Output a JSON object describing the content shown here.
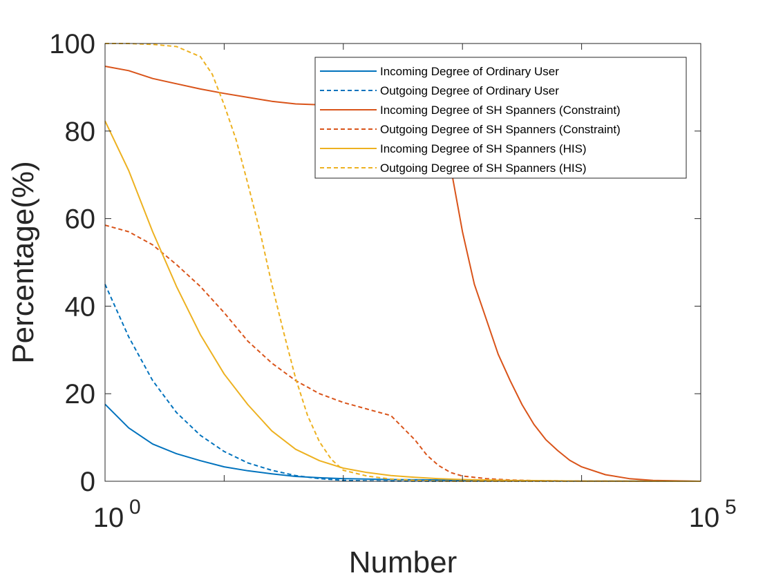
{
  "chart_data": {
    "type": "line",
    "xlabel": "Number",
    "ylabel": "Percentage(%)",
    "x_scale": "log",
    "xlim": [
      1,
      100000
    ],
    "ylim": [
      0,
      100
    ],
    "x_ticks": [
      {
        "base": "10",
        "exp": "0"
      },
      {
        "base": "10",
        "exp": "5"
      }
    ],
    "y_ticks": [
      "0",
      "20",
      "40",
      "60",
      "80",
      "100"
    ],
    "legend_position": "top-right",
    "grid": false,
    "series": [
      {
        "name": "Incoming Degree of Ordinary User",
        "color": "#0072BD",
        "dash": "solid",
        "x": [
          1,
          1.58,
          2.51,
          3.98,
          6.31,
          10,
          15.8,
          25.1,
          39.8,
          63.1,
          100,
          251,
          631,
          1000,
          3162,
          10000,
          100000
        ],
        "y": [
          17.6,
          12.2,
          8.5,
          6.3,
          4.7,
          3.3,
          2.4,
          1.7,
          1.1,
          0.8,
          0.6,
          0.4,
          0.3,
          0.2,
          0.1,
          0.05,
          0
        ]
      },
      {
        "name": "Outgoing Degree of Ordinary User",
        "color": "#0072BD",
        "dash": "dashed",
        "x": [
          1,
          1.58,
          2.51,
          3.98,
          6.31,
          10,
          15.8,
          25.1,
          39.8,
          63.1,
          100,
          158,
          251,
          631,
          1000,
          10000,
          100000
        ],
        "y": [
          45,
          33,
          23,
          15.7,
          10.5,
          6.8,
          4.2,
          2.5,
          1.3,
          0.6,
          0.2,
          0.1,
          0.05,
          0,
          0,
          0,
          0
        ]
      },
      {
        "name": "Incoming Degree of SH Spanners (Constraint)",
        "color": "#D95319",
        "dash": "solid",
        "x": [
          1,
          1.58,
          2.51,
          3.98,
          6.31,
          10,
          15.8,
          25.1,
          39.8,
          63.1,
          100,
          158,
          251,
          398,
          631,
          794,
          1000,
          1259,
          1585,
          1995,
          2512,
          3162,
          3981,
          5012,
          6310,
          7943,
          10000,
          15849,
          25119,
          39811,
          100000
        ],
        "y": [
          94.8,
          93.8,
          92,
          90.8,
          89.6,
          88.6,
          87.7,
          86.8,
          86.2,
          86,
          86,
          85,
          84,
          82,
          78,
          72,
          57,
          45,
          37,
          29,
          23,
          17.5,
          13,
          9.5,
          7,
          4.8,
          3.3,
          1.5,
          0.6,
          0.2,
          0
        ]
      },
      {
        "name": "Outgoing Degree of SH Spanners (Constraint)",
        "color": "#D95319",
        "dash": "dashed",
        "x": [
          1,
          1.58,
          2.51,
          3.98,
          6.31,
          10,
          15.8,
          25.1,
          39.8,
          63.1,
          100,
          158,
          251,
          398,
          501,
          631,
          794,
          1000,
          1585,
          2512,
          3981,
          10000,
          100000
        ],
        "y": [
          58.5,
          57,
          54,
          49.5,
          44.5,
          38.5,
          32,
          27,
          23,
          20,
          18,
          16.5,
          15,
          9.5,
          6,
          3.6,
          2,
          1.2,
          0.6,
          0.3,
          0.15,
          0.05,
          0
        ]
      },
      {
        "name": "Incoming Degree of SH Spanners (HIS)",
        "color": "#EDB120",
        "dash": "solid",
        "x": [
          1,
          1.58,
          2.51,
          3.98,
          6.31,
          10,
          15.8,
          25.1,
          39.8,
          63.1,
          100,
          158,
          251,
          398,
          631,
          1000,
          2512,
          10000,
          100000
        ],
        "y": [
          82.3,
          71,
          57,
          44.5,
          33.5,
          24.5,
          17.5,
          11.5,
          7.3,
          4.7,
          3,
          2,
          1.3,
          0.9,
          0.6,
          0.4,
          0.2,
          0.05,
          0
        ]
      },
      {
        "name": "Outgoing Degree of SH Spanners (HIS)",
        "color": "#EDB120",
        "dash": "dashed",
        "x": [
          1,
          1.58,
          2.51,
          3.98,
          6.31,
          7.94,
          10,
          12.6,
          15.8,
          20,
          25.1,
          31.6,
          39.8,
          50.1,
          63.1,
          79.4,
          100,
          158,
          251,
          398,
          631,
          1000,
          10000,
          100000
        ],
        "y": [
          100,
          100,
          99.8,
          99.3,
          97,
          93,
          86,
          78,
          68,
          57,
          45,
          34,
          23.5,
          15,
          9,
          5,
          2.5,
          1.2,
          0.5,
          0.2,
          0.05,
          0,
          0,
          0
        ]
      }
    ]
  }
}
